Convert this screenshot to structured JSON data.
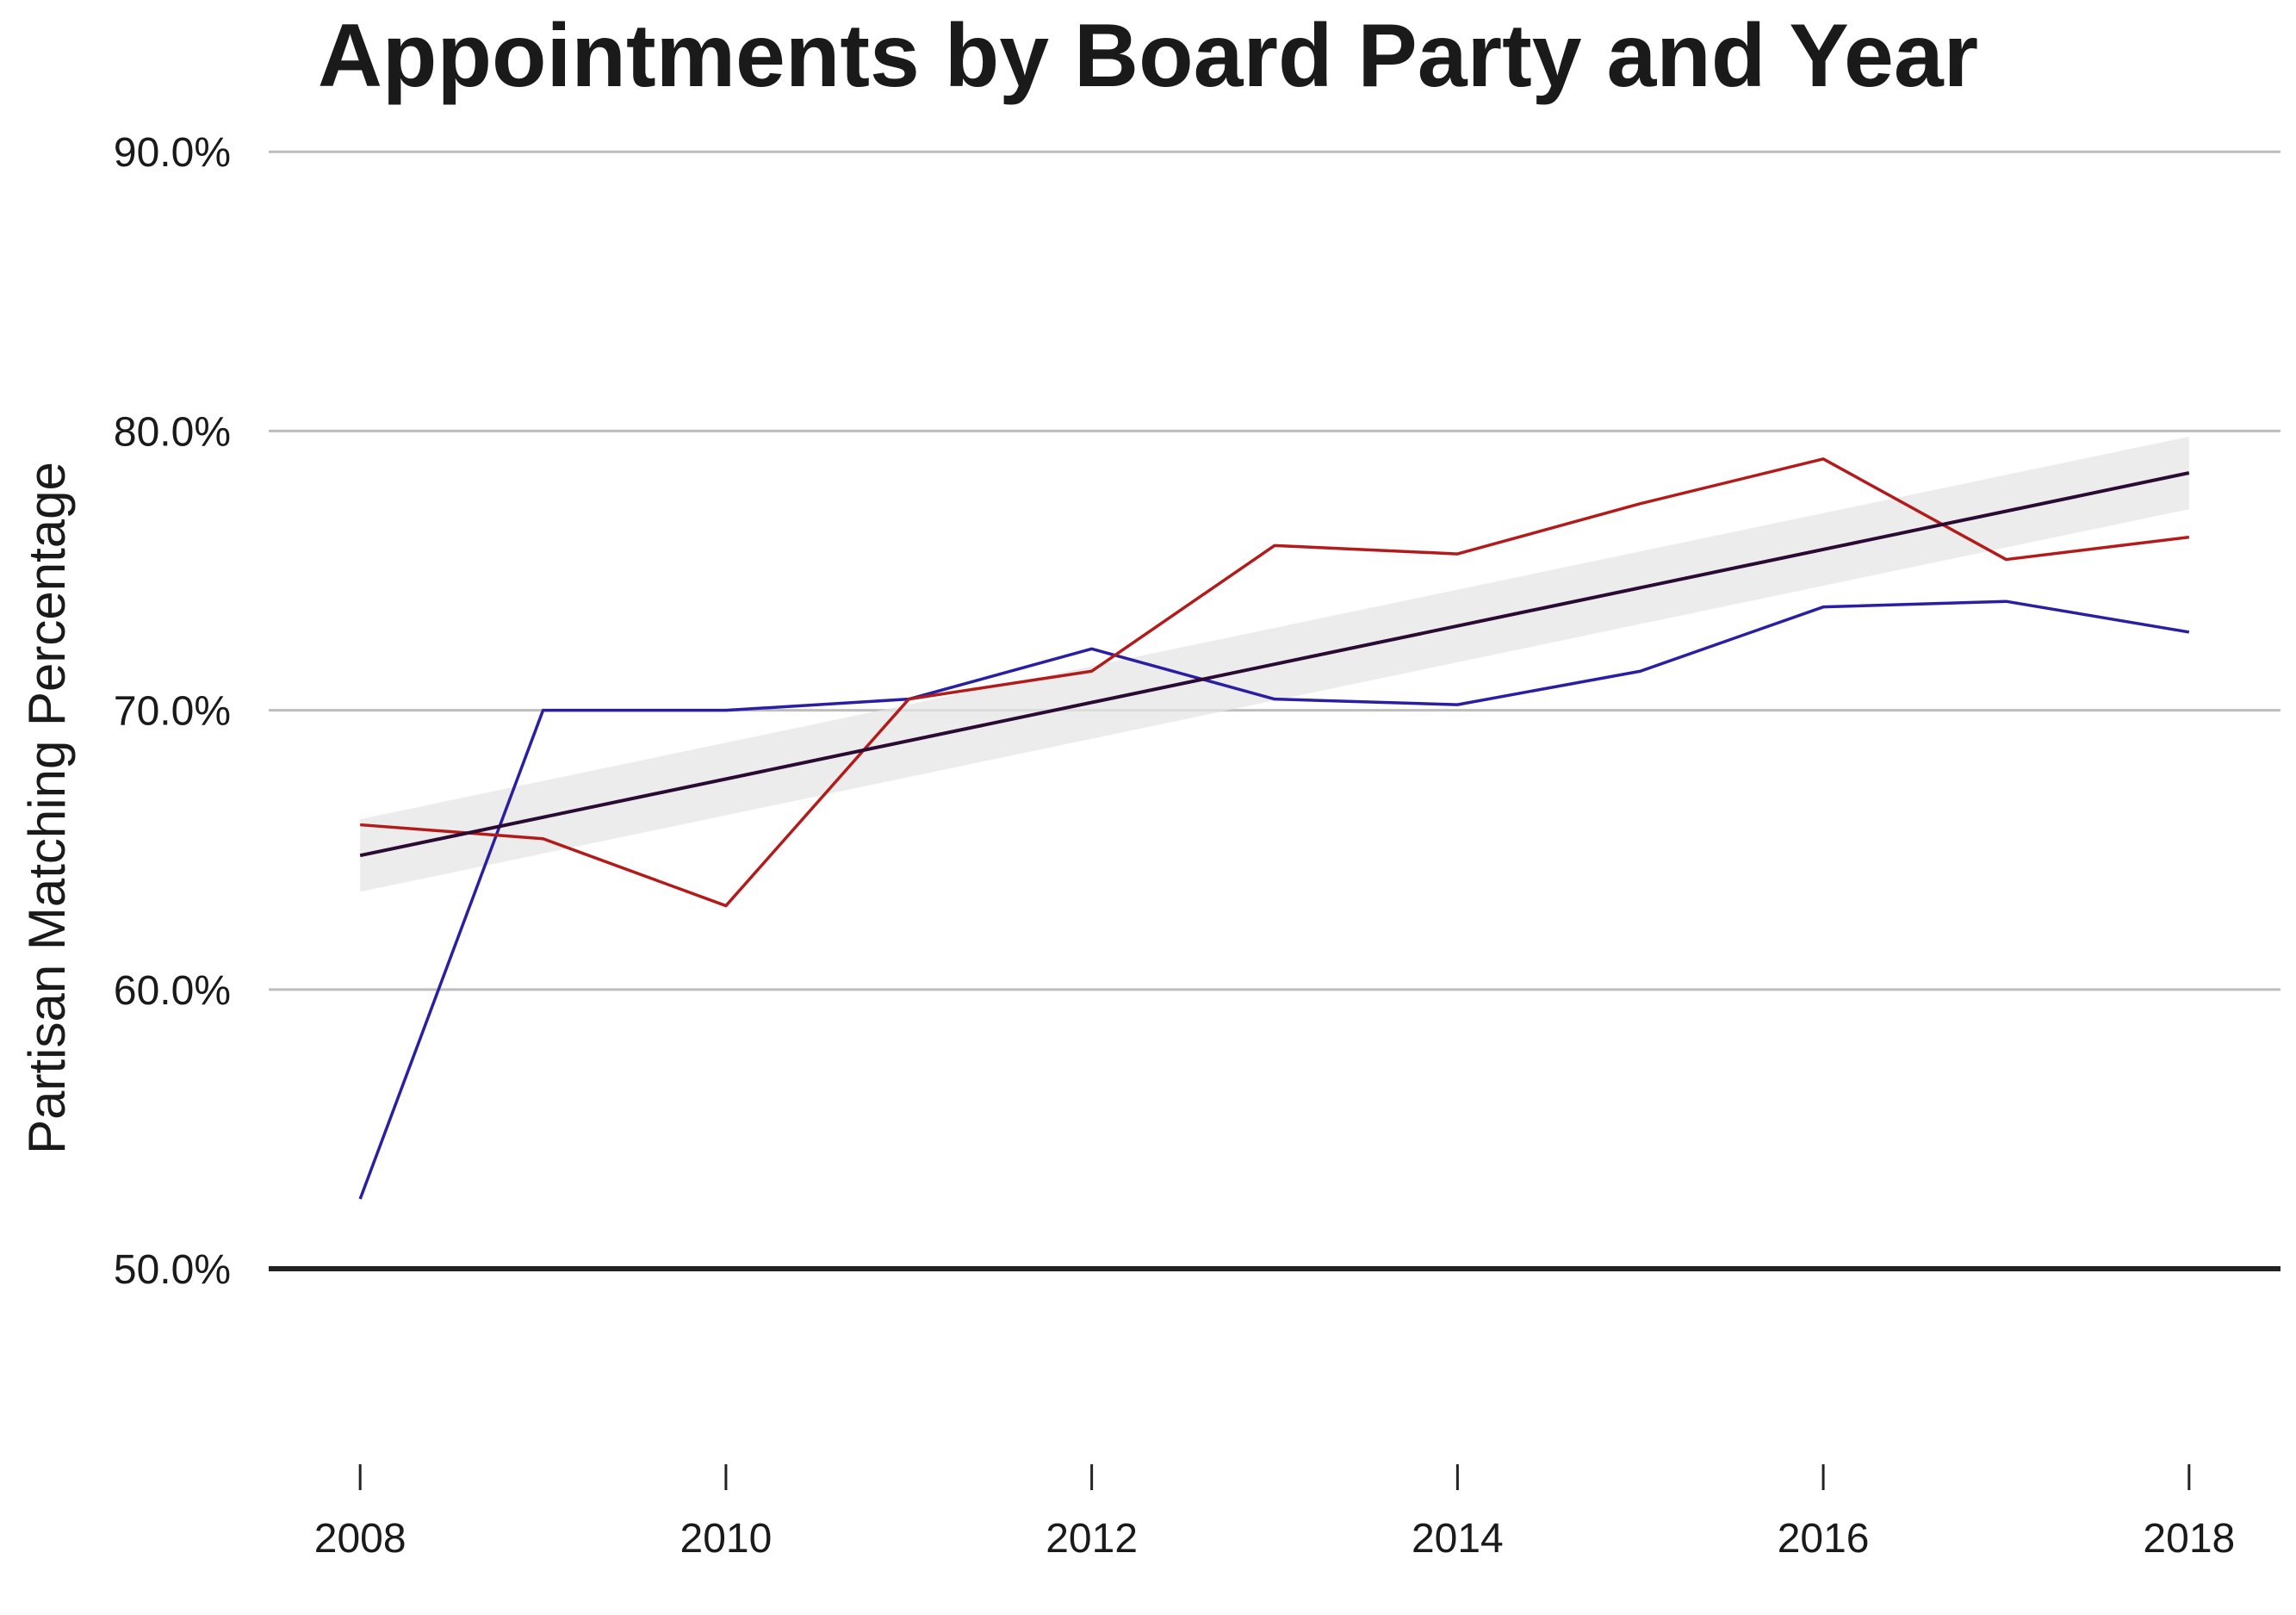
{
  "colors": {
    "background": "#ffffff",
    "grid": "#bdbdbd",
    "baseline": "#222222",
    "series_blue": "#2a1fa3",
    "series_red": "#b31b1b",
    "trend": "#2b0a33",
    "band": "#e6e6e6",
    "text": "#1a1a1a"
  },
  "chart_data": {
    "type": "line",
    "title": "Appointments by Board Party and Year",
    "xlabel": "",
    "ylabel": "Partisan Matching Percentage",
    "x": [
      2008,
      2009,
      2010,
      2011,
      2012,
      2013,
      2014,
      2015,
      2016,
      2017,
      2018
    ],
    "xlim": [
      2007.5,
      2018.5
    ],
    "ylim": [
      43,
      90.5
    ],
    "x_ticks": [
      2008,
      2010,
      2012,
      2014,
      2016,
      2018
    ],
    "x_tick_labels": [
      "2008",
      "2010",
      "2012",
      "2014",
      "2016",
      "2018"
    ],
    "y_ticks": [
      50,
      60,
      70,
      80,
      90
    ],
    "y_tick_labels": [
      "50.0%",
      "60.0%",
      "70.0%",
      "80.0%",
      "90.0%"
    ],
    "reference_line": 50,
    "grid": true,
    "series": [
      {
        "color_key": "series_blue",
        "values": [
          52.5,
          70.0,
          70.0,
          70.4,
          72.2,
          70.4,
          70.2,
          71.4,
          73.7,
          73.9,
          72.8
        ]
      },
      {
        "color_key": "series_red",
        "values": [
          65.9,
          65.4,
          63.0,
          70.4,
          71.4,
          75.9,
          75.6,
          77.4,
          79.0,
          75.4,
          76.2
        ]
      }
    ],
    "trend": {
      "color_key": "trend",
      "x": [
        2008,
        2018
      ],
      "values": [
        64.8,
        78.5
      ],
      "band_lower": [
        63.5,
        77.2
      ],
      "band_upper": [
        66.1,
        79.8
      ]
    }
  }
}
